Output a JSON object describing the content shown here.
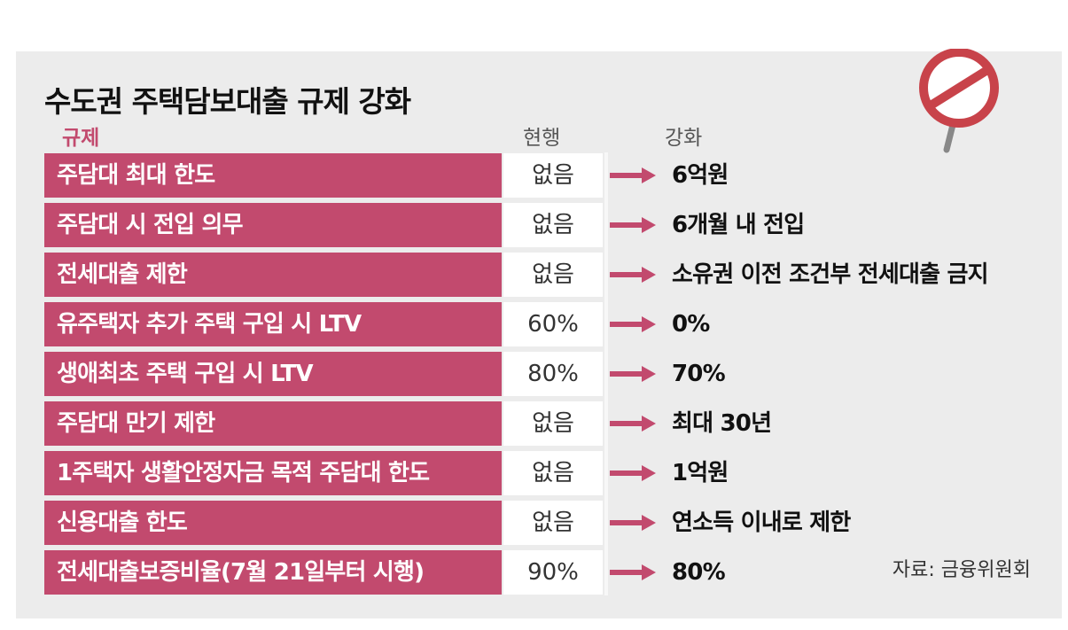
{
  "title": "수도권 주택담보대출 규제 강화",
  "columns": {
    "rule": "규제",
    "current": "현행",
    "strengthened": "강화"
  },
  "rows": [
    {
      "rule": "주담대 최대 한도",
      "current": "없음",
      "strengthened": "6억원"
    },
    {
      "rule": "주담대 시 전입 의무",
      "current": "없음",
      "strengthened": "6개월 내 전입"
    },
    {
      "rule": "전세대출 제한",
      "current": "없음",
      "strengthened": "소유권 이전 조건부 전세대출 금지"
    },
    {
      "rule": "유주택자 추가 주택 구입 시 LTV",
      "current": "60%",
      "strengthened": "0%"
    },
    {
      "rule": "생애최초 주택 구입 시 LTV",
      "current": "80%",
      "strengthened": "70%"
    },
    {
      "rule": "주담대 만기 제한",
      "current": "없음",
      "strengthened": "최대 30년"
    },
    {
      "rule": "1주택자 생활안정자금 목적 주담대 한도",
      "current": "없음",
      "strengthened": "1억원"
    },
    {
      "rule": "신용대출 한도",
      "current": "없음",
      "strengthened": "연소득 이내로 제한"
    },
    {
      "rule": "전세대출보증비율(7월 21일부터 시행)",
      "current": "90%",
      "strengthened": "80%"
    }
  ],
  "source": "자료: 금융위원회",
  "colors": {
    "accent": "#c24a6e",
    "card_bg": "#ececec",
    "sign_red": "#c8434a"
  },
  "icons": {
    "sign": "no-entry-sign-icon",
    "arrow": "right-arrow-icon"
  }
}
